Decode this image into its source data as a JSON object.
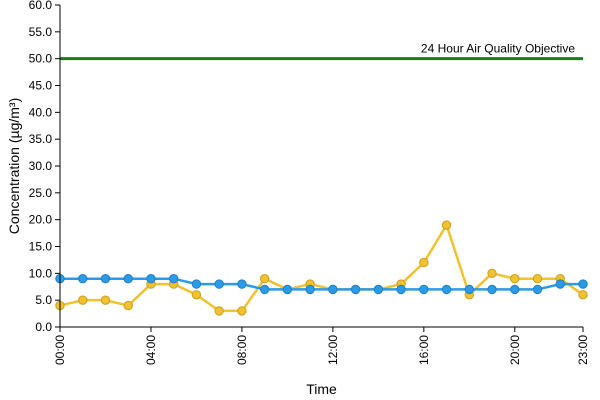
{
  "chart_data": {
    "type": "line",
    "title": "",
    "xlabel": "Time",
    "ylabel": "Concentration (µg/m³)",
    "ylim": [
      0,
      60
    ],
    "yticks": [
      "0.0",
      "5.0",
      "10.0",
      "15.0",
      "20.0",
      "25.0",
      "30.0",
      "35.0",
      "40.0",
      "45.0",
      "50.0",
      "55.0",
      "60.0"
    ],
    "x": [
      "00:00",
      "01:00",
      "02:00",
      "03:00",
      "04:00",
      "05:00",
      "06:00",
      "07:00",
      "08:00",
      "09:00",
      "10:00",
      "11:00",
      "12:00",
      "13:00",
      "14:00",
      "15:00",
      "16:00",
      "17:00",
      "18:00",
      "19:00",
      "20:00",
      "21:00",
      "22:00",
      "23:00"
    ],
    "xtick_labels": [
      "00:00",
      "04:00",
      "08:00",
      "12:00",
      "16:00",
      "20:00",
      "23:00"
    ],
    "grid": false,
    "legend": "none",
    "objective": {
      "value": 50,
      "label": "24 Hour Air Quality Objective",
      "color": "#1e7a1e"
    },
    "series": [
      {
        "color": "#f2c12e",
        "marker_fill": "#f2c12e",
        "values": [
          4,
          5,
          5,
          4,
          8,
          8,
          6,
          3,
          3,
          9,
          7,
          8,
          7,
          7,
          7,
          8,
          12,
          19,
          6,
          10,
          9,
          9,
          9,
          6
        ]
      },
      {
        "color": "#2b9be8",
        "marker_fill": "#2b9be8",
        "values": [
          9,
          9,
          9,
          9,
          9,
          9,
          8,
          8,
          8,
          7,
          7,
          7,
          7,
          7,
          7,
          7,
          7,
          7,
          7,
          7,
          7,
          7,
          8,
          8
        ]
      }
    ]
  }
}
